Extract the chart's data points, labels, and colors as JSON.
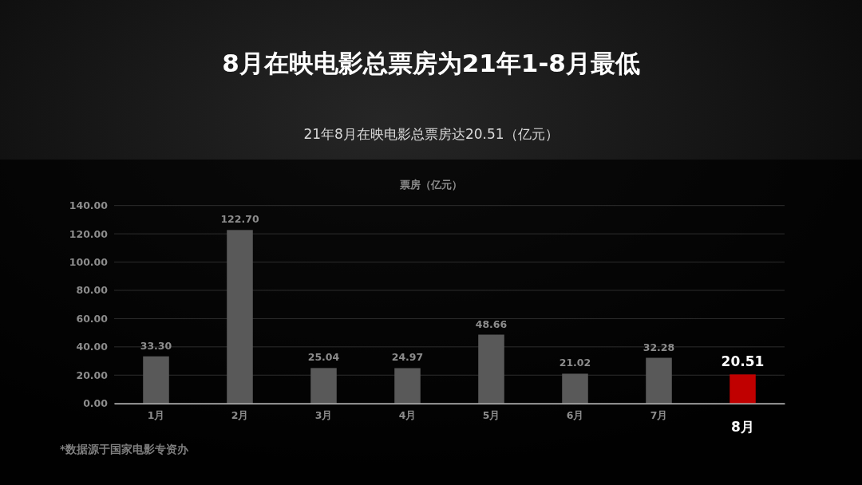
{
  "chart_data": {
    "type": "bar",
    "title": "8月在映电影总票房为21年1-8月最低",
    "subtitle": "21年8月在映电影总票房达20.51（亿元）",
    "ylabel": "票房（亿元）",
    "categories": [
      "1月",
      "2月",
      "3月",
      "4月",
      "5月",
      "6月",
      "7月",
      "8月"
    ],
    "values": [
      33.3,
      122.7,
      25.04,
      24.97,
      48.66,
      21.02,
      32.28,
      20.51
    ],
    "value_labels": [
      "33.30",
      "122.70",
      "25.04",
      "24.97",
      "48.66",
      "21.02",
      "32.28",
      "20.51"
    ],
    "colors": [
      "#595959",
      "#595959",
      "#595959",
      "#595959",
      "#595959",
      "#595959",
      "#595959",
      "#c00000"
    ],
    "ylim": [
      0,
      140
    ],
    "yticks": [
      {
        "value": 0,
        "label": "0.00"
      },
      {
        "value": 20,
        "label": "20.00"
      },
      {
        "value": 40,
        "label": "40.00"
      },
      {
        "value": 60,
        "label": "60.00"
      },
      {
        "value": 80,
        "label": "80.00"
      },
      {
        "value": 100,
        "label": "100.00"
      },
      {
        "value": 120,
        "label": "120.00"
      },
      {
        "value": 140,
        "label": "140.00"
      }
    ],
    "grid": "y",
    "annotations": [
      "*数据源于国家电影专资办"
    ]
  }
}
